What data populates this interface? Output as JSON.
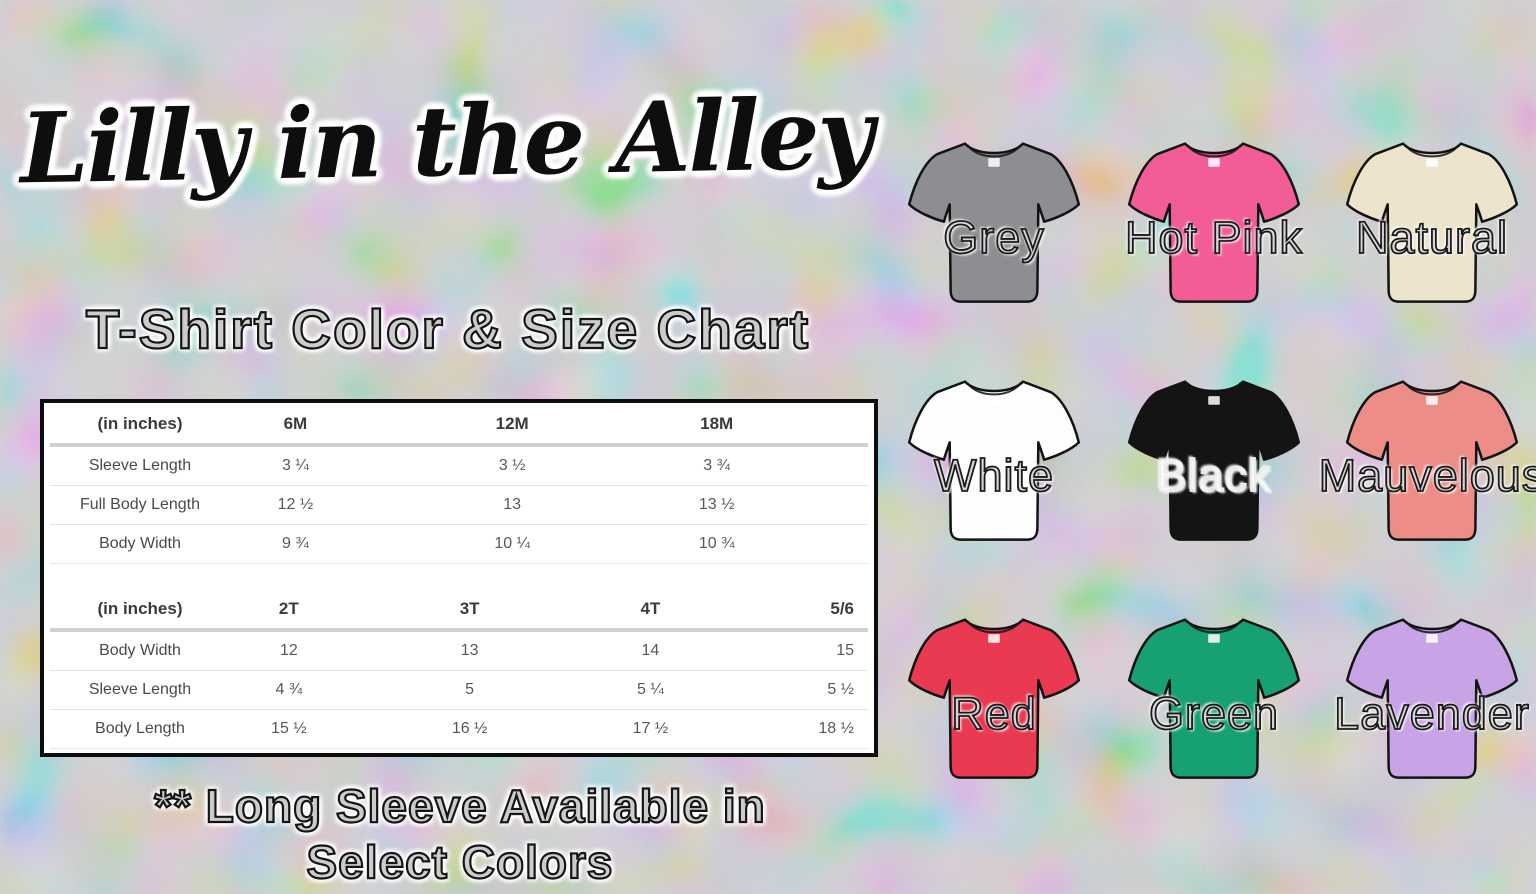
{
  "page": {
    "logo_text": "Lilly in the Alley",
    "subtitle": "T-Shirt Color & Size Chart",
    "footer_line1": "** Long Sleeve Available in",
    "footer_line2": "Select Colors"
  },
  "size_chart": {
    "sections": [
      {
        "unit_label": "(in inches)",
        "columns": [
          "6M",
          "12M",
          "18M"
        ],
        "rows": [
          {
            "label": "Sleeve Length",
            "values": [
              "3 ¼",
              "3 ½",
              "3 ¾"
            ]
          },
          {
            "label": "Full Body Length",
            "values": [
              "12 ½",
              "13",
              "13 ½"
            ]
          },
          {
            "label": "Body Width",
            "values": [
              "9 ¾",
              "10 ¼",
              "10 ¾"
            ]
          }
        ]
      },
      {
        "unit_label": "(in inches)",
        "columns": [
          "2T",
          "3T",
          "4T",
          "5/6"
        ],
        "rows": [
          {
            "label": "Body Width",
            "values": [
              "12",
              "13",
              "14",
              "15"
            ]
          },
          {
            "label": "Sleeve Length",
            "values": [
              "4 ¾",
              "5",
              "5 ¼",
              "5 ½"
            ]
          },
          {
            "label": "Body Length",
            "values": [
              "15 ½",
              "16 ½",
              "17 ½",
              "18 ½"
            ]
          }
        ]
      }
    ]
  },
  "shirt_colors": [
    {
      "name": "Grey",
      "fill": "#8d8d92",
      "label_stroke": "#1a1a1a",
      "label_fill": "rgba(25,25,25,0.18)"
    },
    {
      "name": "Hot Pink",
      "fill": "#f25c97",
      "label_stroke": "#1a1a1a",
      "label_fill": "rgba(25,25,25,0.18)"
    },
    {
      "name": "Natural",
      "fill": "#ece4cd",
      "label_stroke": "#1a1a1a",
      "label_fill": "rgba(25,25,25,0.18)"
    },
    {
      "name": "White",
      "fill": "#fdfdfd",
      "label_stroke": "#1a1a1a",
      "label_fill": "rgba(25,25,25,0.18)"
    },
    {
      "name": "Black",
      "fill": "#141414",
      "label_stroke": "#ececec",
      "label_fill": "rgba(236,236,236,0.14)"
    },
    {
      "name": "Mauvelous",
      "fill": "#ec8d88",
      "label_stroke": "#1a1a1a",
      "label_fill": "rgba(25,25,25,0.18)"
    },
    {
      "name": "Red",
      "fill": "#e93a52",
      "label_stroke": "#1a1a1a",
      "label_fill": "rgba(25,25,25,0.18)"
    },
    {
      "name": "Green",
      "fill": "#17a173",
      "label_stroke": "#1a1a1a",
      "label_fill": "rgba(25,25,25,0.18)"
    },
    {
      "name": "Lavender",
      "fill": "#c8a3e5",
      "label_stroke": "#1a1a1a",
      "label_fill": "rgba(25,25,25,0.18)"
    }
  ],
  "background": {
    "base": "#c8c8cb"
  }
}
